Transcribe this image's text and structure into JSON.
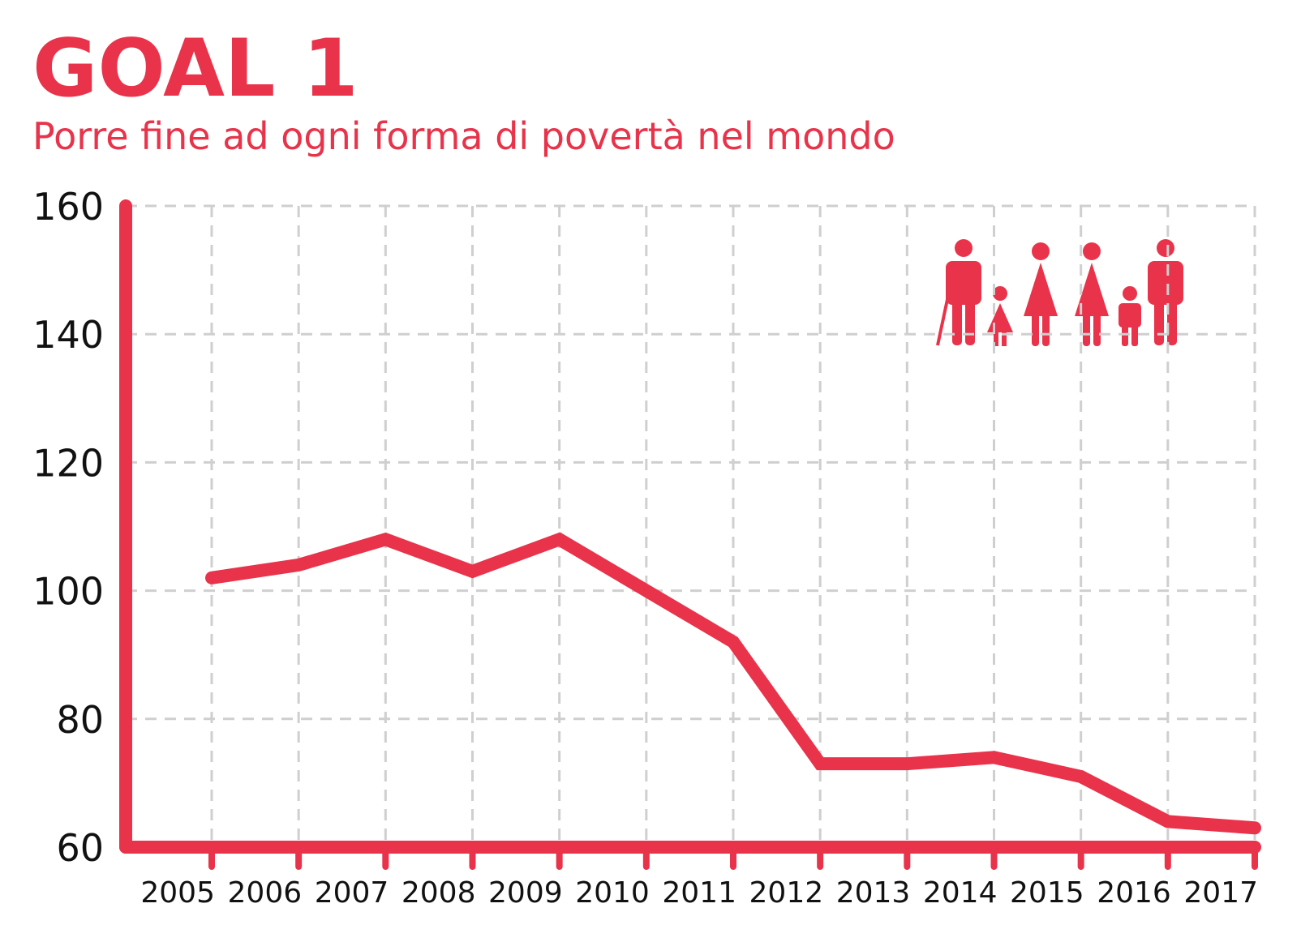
{
  "chart_data": {
    "type": "line",
    "title": "GOAL 1",
    "subtitle": "Porre fine ad ogni forma di povertà nel mondo",
    "categories": [
      "2005",
      "2006",
      "2007",
      "2008",
      "2009",
      "2010",
      "2011",
      "2012",
      "2013",
      "2014",
      "2015",
      "2016",
      "2017"
    ],
    "values": [
      102,
      104,
      108,
      103,
      108,
      100,
      92,
      73,
      73,
      74,
      71,
      64,
      63
    ],
    "color": "#e8334a",
    "ylim": [
      60,
      160
    ],
    "yticks": [
      60,
      80,
      100,
      120,
      140,
      160
    ],
    "grid": true
  }
}
